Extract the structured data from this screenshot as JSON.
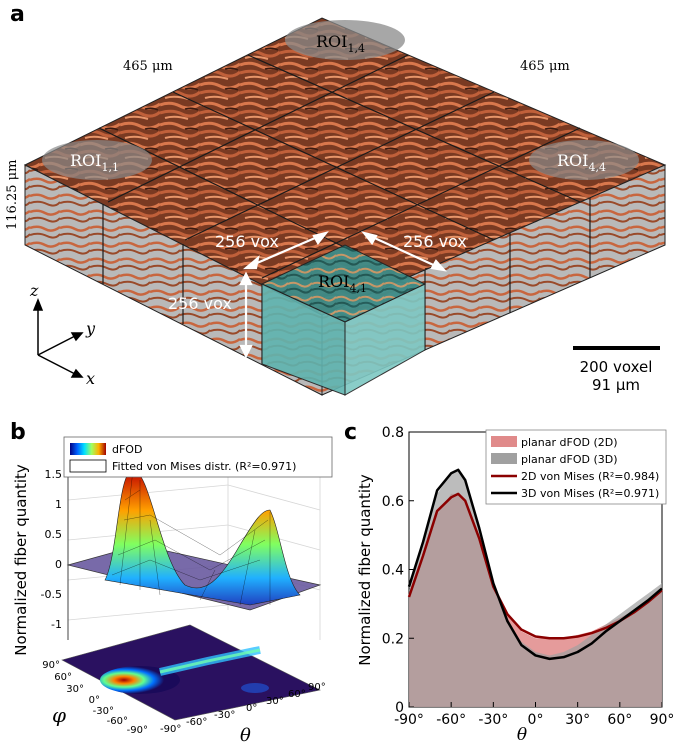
{
  "panel_a": {
    "letter": "a",
    "width_label_left": "465 μm",
    "width_label_right": "465 μm",
    "height_label": "116.25 μm",
    "roi_labels": {
      "top": {
        "base": "ROI",
        "sub": "1,4"
      },
      "left": {
        "base": "ROI",
        "sub": "1,1"
      },
      "right": {
        "base": "ROI",
        "sub": "4,4"
      },
      "front": {
        "base": "ROI",
        "sub": "4,1"
      }
    },
    "vox_labels": {
      "left": "256 vox",
      "right": "256 vox",
      "vertical": "256 vox"
    },
    "axes": {
      "z": "z",
      "y": "y",
      "x": "x"
    },
    "scalebar": {
      "line1": "200 voxel",
      "line2": "91 μm"
    }
  },
  "panel_b": {
    "letter": "b",
    "legend": {
      "dfod": "dFOD",
      "fit": "Fitted von Mises distr. (R²=0.971)"
    },
    "ylabel": "Normalized fiber quantity",
    "zticks": [
      "1.5",
      "1",
      "0.5",
      "0",
      "-0.5",
      "-1"
    ],
    "phi_label": "φ",
    "theta_label": "θ",
    "phi_ticks": [
      "90°",
      "60°",
      "30°",
      "0°",
      "-30°",
      "-60°",
      "-90°"
    ],
    "theta_ticks": [
      "-90°",
      "-60°",
      "-30°",
      "0°",
      "30°",
      "60°",
      "90°"
    ]
  },
  "chart_data": {
    "type": "line",
    "panel_letter": "c",
    "xlabel": "θ",
    "ylabel": "Normalized fiber quantity",
    "xlim": [
      -90,
      90
    ],
    "ylim": [
      0,
      0.8
    ],
    "xticks": [
      -90,
      -60,
      -30,
      0,
      30,
      60,
      90
    ],
    "xtick_labels": [
      "-90°",
      "-60°",
      "-30°",
      "0°",
      "30°",
      "60°",
      "90°"
    ],
    "yticks": [
      0,
      0.2,
      0.4,
      0.6,
      0.8
    ],
    "ytick_labels": [
      "0",
      "0.2",
      "0.4",
      "0.6",
      "0.8"
    ],
    "legend_position": "top-right",
    "x": [
      -90,
      -80,
      -70,
      -60,
      -55,
      -50,
      -40,
      -30,
      -20,
      -10,
      0,
      10,
      20,
      30,
      40,
      50,
      60,
      70,
      80,
      90
    ],
    "series": [
      {
        "name": "planar dFOD (2D)",
        "color": "#e08a8a",
        "kind": "area",
        "values": [
          0.33,
          0.43,
          0.56,
          0.62,
          0.62,
          0.6,
          0.5,
          0.36,
          0.27,
          0.22,
          0.2,
          0.2,
          0.2,
          0.21,
          0.22,
          0.24,
          0.26,
          0.28,
          0.31,
          0.35
        ]
      },
      {
        "name": "planar dFOD (3D)",
        "color": "#a0a0a0",
        "kind": "area",
        "values": [
          0.34,
          0.47,
          0.62,
          0.68,
          0.69,
          0.66,
          0.53,
          0.36,
          0.25,
          0.19,
          0.16,
          0.15,
          0.16,
          0.18,
          0.21,
          0.24,
          0.27,
          0.3,
          0.33,
          0.36
        ]
      },
      {
        "name": "2D von Mises (R²=0.984)",
        "color": "#8b0000",
        "kind": "line",
        "values": [
          0.32,
          0.44,
          0.57,
          0.61,
          0.62,
          0.6,
          0.49,
          0.35,
          0.27,
          0.225,
          0.205,
          0.2,
          0.2,
          0.205,
          0.215,
          0.23,
          0.25,
          0.275,
          0.305,
          0.34
        ]
      },
      {
        "name": "3D von Mises (R²=0.971)",
        "color": "#000000",
        "kind": "line",
        "values": [
          0.35,
          0.48,
          0.63,
          0.68,
          0.69,
          0.66,
          0.52,
          0.36,
          0.25,
          0.18,
          0.15,
          0.14,
          0.145,
          0.16,
          0.185,
          0.22,
          0.25,
          0.28,
          0.31,
          0.345
        ]
      }
    ]
  }
}
